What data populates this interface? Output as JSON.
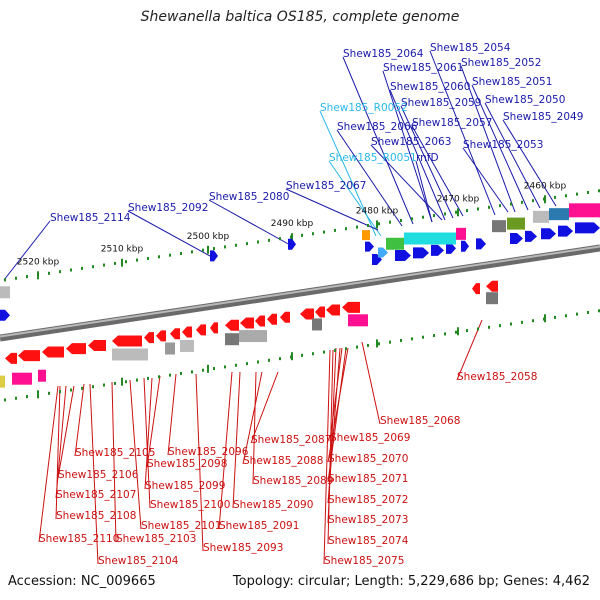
{
  "title": "Shewanella baltica OS185, complete genome",
  "accession": "Accession: NC_009665",
  "summary": "Topology: circular; Length: 5,229,686 bp; Genes: 4,462",
  "colors": {
    "forward_label": "#1a1aaa",
    "rna_label": "#2ab8e8",
    "reverse_label": "#cc1111",
    "backbone": "#888888",
    "tick": "#228822"
  },
  "scale_labels": [
    "2520 kbp",
    "2510 kbp",
    "2500 kbp",
    "2490 kbp",
    "2480 kbp",
    "2470 kbp",
    "2460 kbp"
  ],
  "forward_labels": [
    "Shew185_2064",
    "Shew185_2054",
    "Shew185_2061",
    "Shew185_2052",
    "Shew185_2060",
    "Shew185_2051",
    "Shew185_R0052",
    "Shew185_2059",
    "Shew185_2050",
    "Shew185_2057",
    "Shew185_2066",
    "Shew185_2049",
    "Shew185_2063",
    "Shew185_2053",
    "Shew185_R0051",
    "rnfD",
    "Shew185_2067",
    "Shew185_2080",
    "Shew185_2092",
    "Shew185_2114"
  ],
  "reverse_labels": [
    "Shew185_2058",
    "Shew185_2068",
    "Shew185_2087",
    "Shew185_2069",
    "Shew185_2105",
    "Shew185_2096",
    "Shew185_2098",
    "Shew185_2088",
    "Shew185_2070",
    "Shew185_2106",
    "Shew185_2089",
    "Shew185_2099",
    "Shew185_2071",
    "Shew185_2107",
    "Shew185_2100",
    "Shew185_2090",
    "Shew185_2072",
    "Shew185_2108",
    "Shew185_2101",
    "Shew185_2091",
    "Shew185_2073",
    "Shew185_2110",
    "Shew185_2103",
    "Shew185_2074",
    "Shew185_2093",
    "Shew185_2104",
    "Shew185_2075"
  ]
}
